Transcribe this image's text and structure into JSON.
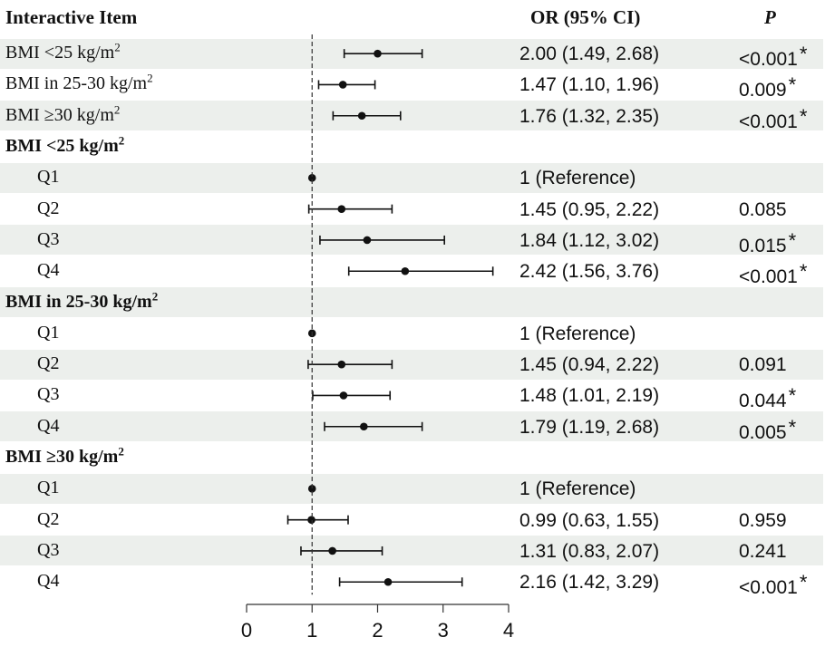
{
  "columns": {
    "item": "Interactive Item",
    "or": "OR (95% CI)",
    "p": "P"
  },
  "chart_data": {
    "type": "forest",
    "xlim": [
      0,
      4
    ],
    "x_ticks": [
      0,
      1,
      2,
      3,
      4
    ],
    "reference_line": 1,
    "rows": [
      {
        "label": "BMI <25 kg/m",
        "sup": "2",
        "kind": "item",
        "or": 2.0,
        "lo": 1.49,
        "hi": 2.68,
        "or_text": "2.00 (1.49, 2.68)",
        "p": "<0.001",
        "star": "*"
      },
      {
        "label": "BMI in 25-30 kg/m",
        "sup": "2",
        "kind": "item",
        "or": 1.47,
        "lo": 1.1,
        "hi": 1.96,
        "or_text": "1.47 (1.10, 1.96)",
        "p": "0.009",
        "star": "*"
      },
      {
        "label": "BMI ≥30 kg/m",
        "sup": "2",
        "kind": "item",
        "or": 1.76,
        "lo": 1.32,
        "hi": 2.35,
        "or_text": "1.76 (1.32, 2.35)",
        "p": "<0.001",
        "star": "*"
      },
      {
        "label": "BMI <25 kg/m",
        "sup": "2",
        "kind": "group"
      },
      {
        "label": "Q1",
        "kind": "sub",
        "or": 1,
        "lo": 1,
        "hi": 1,
        "or_text": "1 (Reference)",
        "p": "",
        "star": ""
      },
      {
        "label": "Q2",
        "kind": "sub",
        "or": 1.45,
        "lo": 0.95,
        "hi": 2.22,
        "or_text": "1.45 (0.95, 2.22)",
        "p": "0.085",
        "star": ""
      },
      {
        "label": "Q3",
        "kind": "sub",
        "or": 1.84,
        "lo": 1.12,
        "hi": 3.02,
        "or_text": "1.84 (1.12, 3.02)",
        "p": "0.015",
        "star": "*"
      },
      {
        "label": "Q4",
        "kind": "sub",
        "or": 2.42,
        "lo": 1.56,
        "hi": 3.76,
        "or_text": "2.42 (1.56, 3.76)",
        "p": "<0.001",
        "star": "*"
      },
      {
        "label": "BMI in 25-30 kg/m",
        "sup": "2",
        "kind": "group"
      },
      {
        "label": "Q1",
        "kind": "sub",
        "or": 1,
        "lo": 1,
        "hi": 1,
        "or_text": "1 (Reference)",
        "p": "",
        "star": ""
      },
      {
        "label": "Q2",
        "kind": "sub",
        "or": 1.45,
        "lo": 0.94,
        "hi": 2.22,
        "or_text": "1.45 (0.94, 2.22)",
        "p": "0.091",
        "star": ""
      },
      {
        "label": "Q3",
        "kind": "sub",
        "or": 1.48,
        "lo": 1.01,
        "hi": 2.19,
        "or_text": "1.48 (1.01, 2.19)",
        "p": "0.044",
        "star": "*"
      },
      {
        "label": "Q4",
        "kind": "sub",
        "or": 1.79,
        "lo": 1.19,
        "hi": 2.68,
        "or_text": "1.79 (1.19, 2.68)",
        "p": "0.005",
        "star": "*"
      },
      {
        "label": "BMI ≥30 kg/m",
        "sup": "2",
        "kind": "group"
      },
      {
        "label": "Q1",
        "kind": "sub",
        "or": 1,
        "lo": 1,
        "hi": 1,
        "or_text": "1 (Reference)",
        "p": "",
        "star": ""
      },
      {
        "label": "Q2",
        "kind": "sub",
        "or": 0.99,
        "lo": 0.63,
        "hi": 1.55,
        "or_text": "0.99 (0.63, 1.55)",
        "p": "0.959",
        "star": ""
      },
      {
        "label": "Q3",
        "kind": "sub",
        "or": 1.31,
        "lo": 0.83,
        "hi": 2.07,
        "or_text": "1.31 (0.83, 2.07)",
        "p": "0.241",
        "star": ""
      },
      {
        "label": "Q4",
        "kind": "sub",
        "or": 2.16,
        "lo": 1.42,
        "hi": 3.29,
        "or_text": "2.16 (1.42, 3.29)",
        "p": "<0.001",
        "star": "*"
      }
    ]
  }
}
